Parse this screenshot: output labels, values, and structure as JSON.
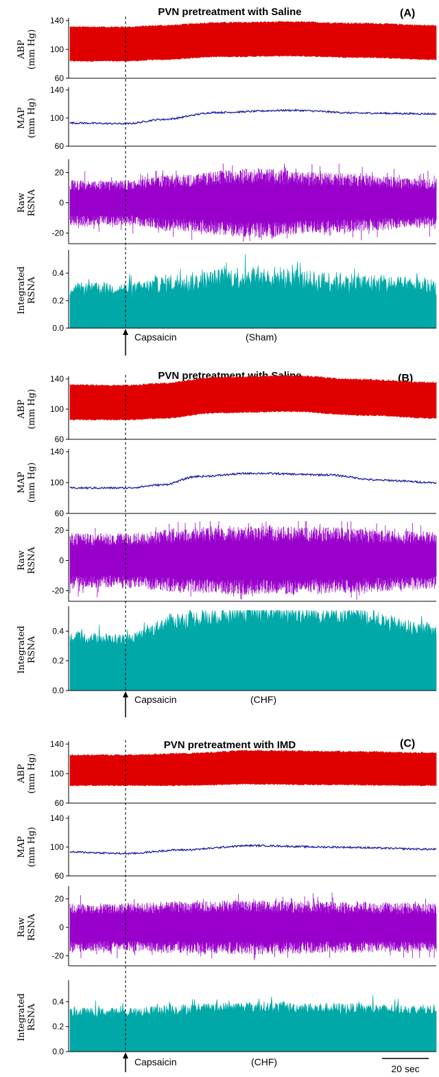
{
  "colors": {
    "abp": "#e00000",
    "map": "#1a1aa0",
    "raw": "#9900cc",
    "integrated": "#00a8a8"
  },
  "scale_bar_label": "20 sec",
  "chart_data": [
    {
      "type": "line",
      "panel": "(A)",
      "title": "PVN pretreatment with Saline",
      "event_label": "Capsaicin",
      "group_label": "(Sham)",
      "event_fraction": 0.155,
      "traces": [
        {
          "name": "ABP",
          "ylabel": [
            "ABP",
            "(mm Hg)"
          ],
          "kind": "band",
          "ylim": [
            60,
            140
          ],
          "yticks": [
            60,
            100,
            140
          ],
          "t": [
            0,
            0.155,
            0.25,
            0.4,
            0.6,
            0.8,
            1.0
          ],
          "upper": [
            131,
            131,
            133,
            137,
            138,
            136,
            133
          ],
          "lower": [
            84,
            84,
            86,
            90,
            91,
            89,
            86
          ]
        },
        {
          "name": "MAP",
          "ylabel": [
            "MAP",
            "(mm Hg)"
          ],
          "kind": "line",
          "ylim": [
            60,
            140
          ],
          "yticks": [
            60,
            100,
            140
          ],
          "t": [
            0,
            0.155,
            0.25,
            0.4,
            0.6,
            0.8,
            1.0
          ],
          "values": [
            93,
            92,
            98,
            108,
            111,
            107,
            106
          ]
        },
        {
          "name": "Raw RSNA",
          "ylabel": [
            "Raw",
            "RSNA"
          ],
          "kind": "noise",
          "ylim": [
            -27,
            27
          ],
          "yticks": [
            -20,
            0,
            20
          ],
          "t": [
            0,
            0.155,
            0.3,
            0.5,
            0.7,
            1.0
          ],
          "amplitude": [
            15,
            15,
            19,
            23,
            20,
            16
          ]
        },
        {
          "name": "Integrated RSNA",
          "ylabel": [
            "Integrated",
            "RSNA"
          ],
          "kind": "filled",
          "ylim": [
            0,
            0.55
          ],
          "yticks": [
            0.0,
            0.2,
            0.4
          ],
          "t": [
            0,
            0.155,
            0.3,
            0.5,
            0.7,
            1.0
          ],
          "base": [
            0.27,
            0.27,
            0.3,
            0.34,
            0.31,
            0.28
          ],
          "spread": [
            0.06,
            0.06,
            0.1,
            0.12,
            0.1,
            0.08
          ]
        }
      ]
    },
    {
      "type": "line",
      "panel": "(B)",
      "title": "PVN pretreatment with Saline",
      "event_label": "Capsaicin",
      "group_label": "(CHF)",
      "event_fraction": 0.155,
      "traces": [
        {
          "name": "ABP",
          "ylabel": [
            "ABP",
            "(mm Hg)"
          ],
          "kind": "band",
          "ylim": [
            60,
            140
          ],
          "yticks": [
            60,
            100,
            140
          ],
          "t": [
            0,
            0.155,
            0.25,
            0.4,
            0.6,
            0.8,
            1.0
          ],
          "upper": [
            132,
            131,
            134,
            142,
            144,
            139,
            135
          ],
          "lower": [
            86,
            86,
            88,
            95,
            97,
            92,
            88
          ]
        },
        {
          "name": "MAP",
          "ylabel": [
            "MAP",
            "(mm Hg)"
          ],
          "kind": "line",
          "ylim": [
            60,
            140
          ],
          "yticks": [
            60,
            100,
            140
          ],
          "t": [
            0,
            0.155,
            0.25,
            0.35,
            0.5,
            0.7,
            0.85,
            1.0
          ],
          "values": [
            93,
            93,
            97,
            108,
            112,
            110,
            103,
            100
          ]
        },
        {
          "name": "Raw RSNA",
          "ylabel": [
            "Raw",
            "RSNA"
          ],
          "kind": "noise",
          "ylim": [
            -27,
            27
          ],
          "yticks": [
            -20,
            0,
            20
          ],
          "t": [
            0,
            0.155,
            0.3,
            0.5,
            0.7,
            1.0
          ],
          "amplitude": [
            18,
            18,
            21,
            23,
            22,
            19
          ]
        },
        {
          "name": "Integrated RSNA",
          "ylabel": [
            "Integrated",
            "RSNA"
          ],
          "kind": "filled",
          "ylim": [
            0,
            0.55
          ],
          "yticks": [
            0.0,
            0.2,
            0.4
          ],
          "t": [
            0,
            0.155,
            0.3,
            0.5,
            0.75,
            1.0
          ],
          "base": [
            0.34,
            0.33,
            0.45,
            0.5,
            0.48,
            0.38
          ],
          "spread": [
            0.05,
            0.05,
            0.08,
            0.09,
            0.08,
            0.07
          ]
        }
      ]
    },
    {
      "type": "line",
      "panel": "(C)",
      "title": "PVN pretreatment with IMD",
      "event_label": "Capsaicin",
      "group_label": "(CHF)",
      "event_fraction": 0.155,
      "traces": [
        {
          "name": "ABP",
          "ylabel": [
            "ABP",
            "(mm Hg)"
          ],
          "kind": "band",
          "ylim": [
            60,
            140
          ],
          "yticks": [
            60,
            100,
            140
          ],
          "t": [
            0,
            0.155,
            0.3,
            0.5,
            0.7,
            1.0
          ],
          "upper": [
            125,
            125,
            127,
            131,
            130,
            128
          ],
          "lower": [
            84,
            84,
            84,
            86,
            85,
            84
          ]
        },
        {
          "name": "MAP",
          "ylabel": [
            "MAP",
            "(mm Hg)"
          ],
          "kind": "line",
          "ylim": [
            60,
            140
          ],
          "yticks": [
            60,
            100,
            140
          ],
          "t": [
            0,
            0.155,
            0.3,
            0.5,
            0.7,
            1.0
          ],
          "values": [
            93,
            91,
            96,
            102,
            100,
            97
          ]
        },
        {
          "name": "Raw RSNA",
          "ylabel": [
            "Raw",
            "RSNA"
          ],
          "kind": "noise",
          "ylim": [
            -27,
            27
          ],
          "yticks": [
            -20,
            0,
            20
          ],
          "t": [
            0,
            0.155,
            0.3,
            0.5,
            0.7,
            1.0
          ],
          "amplitude": [
            17,
            17,
            18,
            19,
            18,
            17
          ]
        },
        {
          "name": "Integrated RSNA",
          "ylabel": [
            "Integrated",
            "RSNA"
          ],
          "kind": "filled",
          "ylim": [
            0,
            0.55
          ],
          "yticks": [
            0.0,
            0.2,
            0.4
          ],
          "t": [
            0,
            0.155,
            0.3,
            0.5,
            0.7,
            1.0
          ],
          "base": [
            0.3,
            0.3,
            0.32,
            0.34,
            0.33,
            0.32
          ],
          "spread": [
            0.05,
            0.05,
            0.06,
            0.06,
            0.06,
            0.05
          ]
        }
      ]
    }
  ]
}
